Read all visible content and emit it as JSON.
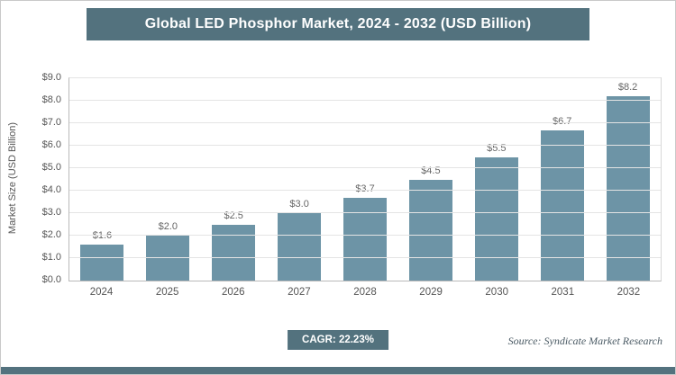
{
  "header": {
    "title": "Global LED Phosphor Market, 2024 - 2032 (USD Billion)"
  },
  "chart_data": {
    "type": "bar",
    "title": "Global LED Phosphor Market, 2024 - 2032 (USD Billion)",
    "categories": [
      "2024",
      "2025",
      "2026",
      "2027",
      "2028",
      "2029",
      "2030",
      "2031",
      "2032"
    ],
    "values": [
      1.6,
      2.0,
      2.5,
      3.0,
      3.7,
      4.5,
      5.5,
      6.7,
      8.2
    ],
    "value_labels": [
      "$1.6",
      "$2.0",
      "$2.5",
      "$3.0",
      "$3.7",
      "$4.5",
      "$5.5",
      "$6.7",
      "$8.2"
    ],
    "xlabel": "",
    "ylabel": "Market Size (USD Billion)",
    "ylim": [
      0,
      9
    ],
    "ytick_step": 1,
    "ytick_labels": [
      "$0.0",
      "$1.0",
      "$2.0",
      "$3.0",
      "$4.0",
      "$5.0",
      "$6.0",
      "$7.0",
      "$8.0",
      "$9.0"
    ],
    "grid": true,
    "legend": "none",
    "bar_color": "#6D94A6"
  },
  "footer": {
    "cagr_label": "CAGR: 22.23%",
    "source": "Source: Syndicate Market Research"
  },
  "colors": {
    "banner_bg": "#53727E",
    "badge_bg": "#53727E",
    "bottom_strip": "#53727E",
    "bar": "#6D94A6"
  }
}
